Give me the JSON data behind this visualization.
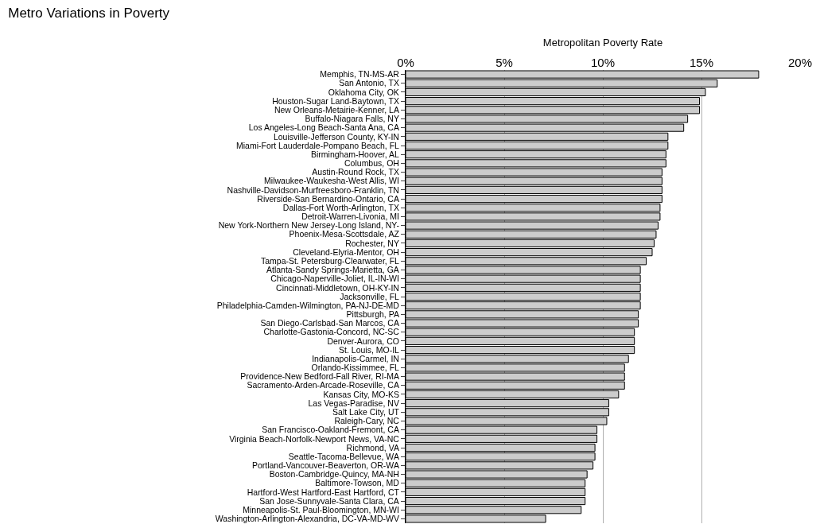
{
  "chart_data": {
    "type": "bar",
    "orientation": "horizontal",
    "title": "Metro Variations in Poverty",
    "xlabel": "Metropolitan Poverty Rate",
    "categories": [
      "Memphis, TN-MS-AR",
      "San Antonio, TX",
      "Oklahoma City, OK",
      "Houston-Sugar Land-Baytown, TX",
      "New Orleans-Metairie-Kenner, LA",
      "Buffalo-Niagara Falls, NY",
      "Los Angeles-Long Beach-Santa Ana, CA",
      "Louisville-Jefferson County, KY-IN",
      "Miami-Fort Lauderdale-Pompano Beach, FL",
      "Birmingham-Hoover, AL",
      "Columbus, OH",
      "Austin-Round Rock, TX",
      "Milwaukee-Waukesha-West Allis, WI",
      "Nashville-Davidson-Murfreesboro-Franklin, TN",
      "Riverside-San Bernardino-Ontario, CA",
      "Dallas-Fort Worth-Arlington, TX",
      "Detroit-Warren-Livonia, MI",
      "New York-Northern New Jersey-Long Island, NY-",
      "Phoenix-Mesa-Scottsdale, AZ",
      "Rochester, NY",
      "Cleveland-Elyria-Mentor, OH",
      "Tampa-St. Petersburg-Clearwater, FL",
      "Atlanta-Sandy Springs-Marietta, GA",
      "Chicago-Naperville-Joliet, IL-IN-WI",
      "Cincinnati-Middletown, OH-KY-IN",
      "Jacksonville, FL",
      "Philadelphia-Camden-Wilmington, PA-NJ-DE-MD",
      "Pittsburgh, PA",
      "San Diego-Carlsbad-San Marcos, CA",
      "Charlotte-Gastonia-Concord, NC-SC",
      "Denver-Aurora, CO",
      "St. Louis, MO-IL",
      "Indianapolis-Carmel, IN",
      "Orlando-Kissimmee, FL",
      "Providence-New Bedford-Fall River, RI-MA",
      "Sacramento-Arden-Arcade-Roseville, CA",
      "Kansas City, MO-KS",
      "Las Vegas-Paradise, NV",
      "Salt Lake City, UT",
      "Raleigh-Cary, NC",
      "San Francisco-Oakland-Fremont, CA",
      "Virginia Beach-Norfolk-Newport News, VA-NC",
      "Richmond, VA",
      "Seattle-Tacoma-Bellevue, WA",
      "Portland-Vancouver-Beaverton, OR-WA",
      "Boston-Cambridge-Quincy, MA-NH",
      "Baltimore-Towson, MD",
      "Hartford-West Hartford-East Hartford, CT",
      "San Jose-Sunnyvale-Santa Clara, CA",
      "Minneapolis-St. Paul-Bloomington, MN-WI",
      "Washington-Arlington-Alexandria, DC-VA-MD-WV"
    ],
    "values": [
      17.9,
      15.8,
      15.2,
      14.9,
      14.9,
      14.3,
      14.1,
      13.3,
      13.3,
      13.2,
      13.2,
      13.0,
      13.0,
      13.0,
      13.0,
      12.9,
      12.9,
      12.8,
      12.7,
      12.6,
      12.5,
      12.2,
      11.9,
      11.9,
      11.9,
      11.9,
      11.9,
      11.8,
      11.8,
      11.6,
      11.6,
      11.6,
      11.3,
      11.1,
      11.1,
      11.1,
      10.8,
      10.3,
      10.3,
      10.2,
      9.7,
      9.7,
      9.6,
      9.6,
      9.5,
      9.2,
      9.1,
      9.1,
      9.1,
      8.9,
      7.1
    ],
    "color": "#cccccc",
    "xlim": [
      0,
      20
    ],
    "xticks": [
      {
        "value": 0,
        "label": "0%"
      },
      {
        "value": 5,
        "label": "5%"
      },
      {
        "value": 10,
        "label": "10%"
      },
      {
        "value": 15,
        "label": "15%"
      },
      {
        "value": 20,
        "label": "20%"
      }
    ],
    "grid": "x"
  }
}
